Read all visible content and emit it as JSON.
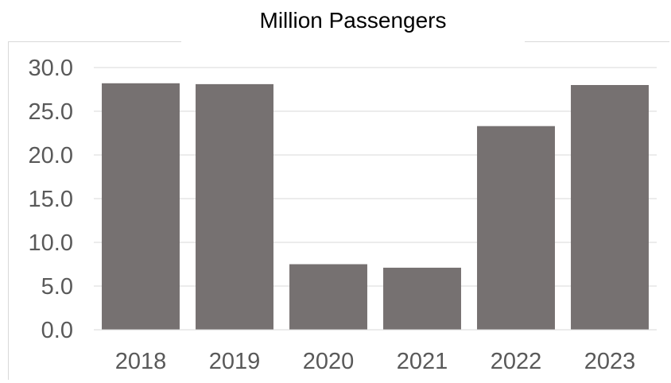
{
  "chart_data": {
    "type": "bar",
    "title": "Million Passengers",
    "categories": [
      "2018",
      "2019",
      "2020",
      "2021",
      "2022",
      "2023"
    ],
    "values": [
      28.2,
      28.1,
      7.5,
      7.1,
      23.3,
      28.0
    ],
    "ylim": [
      0,
      30
    ],
    "yticks": [
      "0.0",
      "5.0",
      "10.0",
      "15.0",
      "20.0",
      "25.0",
      "30.0"
    ],
    "grid": true,
    "bar_color": "#767171",
    "xlabel": "",
    "ylabel": ""
  }
}
